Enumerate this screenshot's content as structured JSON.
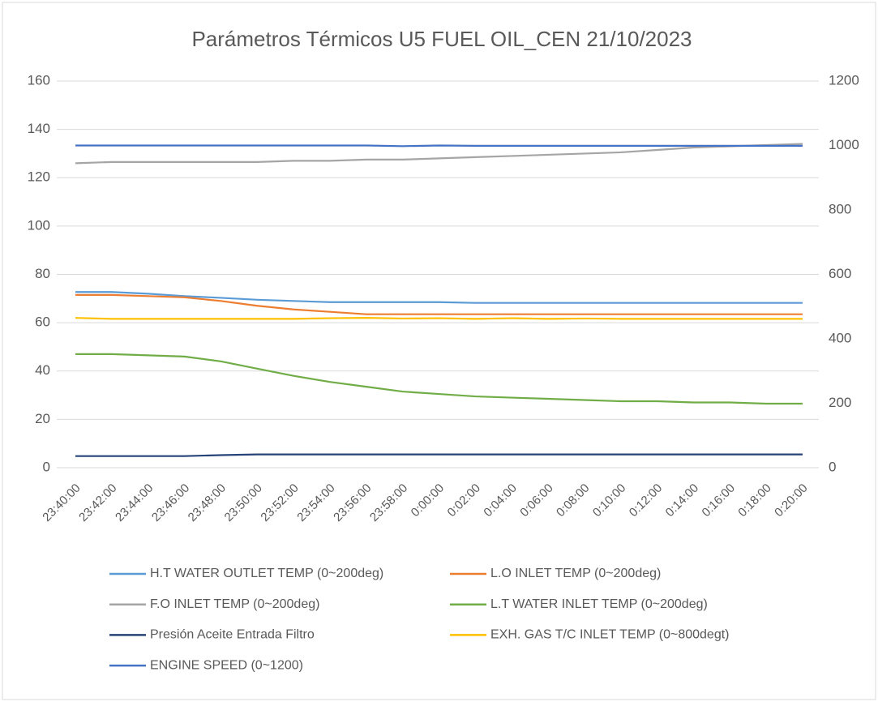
{
  "chart_data": {
    "type": "line",
    "title": "Parámetros Térmicos U5 FUEL OIL_CEN 21/10/2023",
    "categories": [
      "23:40:00",
      "23:42:00",
      "23:44:00",
      "23:46:00",
      "23:48:00",
      "23:50:00",
      "23:52:00",
      "23:54:00",
      "23:56:00",
      "23:58:00",
      "0:00:00",
      "0:02:00",
      "0:04:00",
      "0:06:00",
      "0:08:00",
      "0:10:00",
      "0:12:00",
      "0:14:00",
      "0:16:00",
      "0:18:00",
      "0:20:00"
    ],
    "series": [
      {
        "name": "H.T WATER OUTLET TEMP (0~200deg)",
        "color": "#5b9bd5",
        "values": [
          72.7,
          72.7,
          72,
          71,
          70.3,
          69.5,
          69,
          68.5,
          68.5,
          68.5,
          68.5,
          68.2,
          68.2,
          68.2,
          68.2,
          68.2,
          68.2,
          68.2,
          68.2,
          68.2,
          68.2
        ]
      },
      {
        "name": "L.O INLET TEMP (0~200deg)",
        "color": "#ed7d31",
        "values": [
          71.5,
          71.5,
          71,
          70.5,
          69,
          67,
          65.5,
          64.5,
          63.5,
          63.5,
          63.5,
          63.5,
          63.5,
          63.5,
          63.5,
          63.5,
          63.5,
          63.5,
          63.5,
          63.5,
          63.5
        ]
      },
      {
        "name": "F.O INLET TEMP (0~200deg)",
        "color": "#a5a5a5",
        "values": [
          126,
          126.5,
          126.5,
          126.5,
          126.5,
          126.5,
          127,
          127,
          127.5,
          127.5,
          128,
          128.5,
          129,
          129.5,
          130,
          130.5,
          131.5,
          132.5,
          133,
          133.5,
          134
        ]
      },
      {
        "name": "L.T WATER INLET TEMP (0~200deg)",
        "color": "#70ad47",
        "values": [
          47,
          47,
          46.5,
          46,
          44,
          41,
          38,
          35.5,
          33.5,
          31.5,
          30.5,
          29.5,
          29,
          28.5,
          28,
          27.5,
          27.5,
          27,
          27,
          26.5,
          26.5
        ]
      },
      {
        "name": "Presión Aceite Entrada Filtro",
        "color": "#264478",
        "values": [
          4.8,
          4.8,
          4.8,
          4.8,
          5.2,
          5.5,
          5.5,
          5.5,
          5.5,
          5.5,
          5.5,
          5.5,
          5.5,
          5.5,
          5.5,
          5.5,
          5.5,
          5.5,
          5.5,
          5.5,
          5.5
        ]
      },
      {
        "name": "EXH. GAS T/C INLET TEMP (0~800degt)",
        "color": "#ffc000",
        "axis": "y2",
        "values": [
          465,
          462,
          462,
          462,
          462,
          462,
          462,
          464,
          465,
          463,
          464,
          462,
          464,
          462,
          463,
          462,
          462,
          462,
          462,
          462,
          462
        ]
      },
      {
        "name": "ENGINE SPEED (0~1200)",
        "color": "#4472c4",
        "axis": "y2",
        "values": [
          1000,
          1000,
          1000,
          1000,
          1000,
          1000,
          1000,
          1000,
          1000,
          998,
          1000,
          999,
          999,
          999,
          999,
          999,
          999,
          999,
          999,
          999,
          999
        ]
      }
    ],
    "ylim": [
      0,
      160
    ],
    "yticks": [
      0,
      20,
      40,
      60,
      80,
      100,
      120,
      140,
      160
    ],
    "y2lim": [
      0,
      1200
    ],
    "y2ticks": [
      0,
      200,
      400,
      600,
      800,
      1000,
      1200
    ],
    "grid": true
  }
}
